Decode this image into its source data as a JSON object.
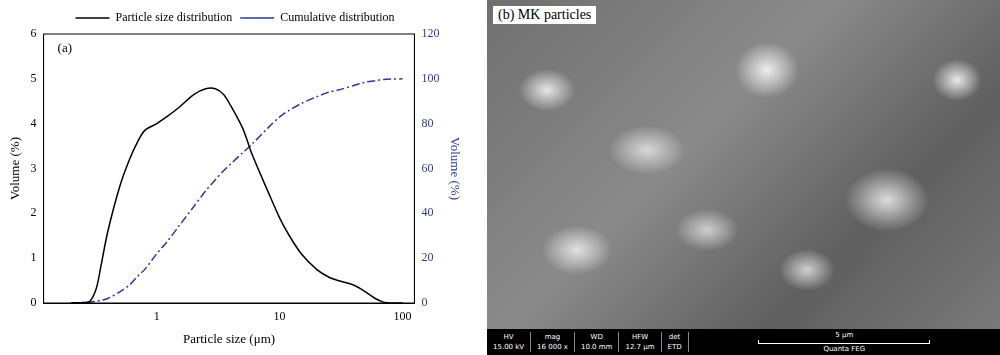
{
  "chart_data": {
    "type": "line",
    "x_label": "Particle size (μm)",
    "y_label": "Volume (%)",
    "y2_label": "Volume (%)",
    "annotations": [
      "(a)"
    ],
    "log": "x",
    "grid": false,
    "legend": "top",
    "xlim": [
      0.12,
      125
    ],
    "xticks": [
      1,
      10,
      100
    ],
    "ylim": [
      0,
      6
    ],
    "yticks": [
      0,
      1,
      2,
      3,
      4,
      5,
      6
    ],
    "y2lim": [
      0,
      120
    ],
    "y2ticks": [
      0,
      20,
      40,
      60,
      80,
      100,
      120
    ],
    "x": [
      0.2,
      0.28,
      0.32,
      0.35,
      0.4,
      0.5,
      0.6,
      0.7,
      0.8,
      1.0,
      1.2,
      1.5,
      2.0,
      2.5,
      3.0,
      3.5,
      4.0,
      5.0,
      6.0,
      8.0,
      10,
      12,
      15,
      20,
      25,
      30,
      40,
      50,
      60,
      70,
      80,
      100
    ],
    "series": [
      {
        "name": "Particle size distribution",
        "color": "#000000",
        "line_style": "solid",
        "values": [
          0,
          0.02,
          0.3,
          0.8,
          1.6,
          2.6,
          3.2,
          3.6,
          3.85,
          4.0,
          4.15,
          4.35,
          4.65,
          4.78,
          4.78,
          4.65,
          4.4,
          3.9,
          3.3,
          2.5,
          1.9,
          1.5,
          1.1,
          0.75,
          0.58,
          0.5,
          0.4,
          0.25,
          0.1,
          0.02,
          0,
          0
        ]
      },
      {
        "name": "Cumulative distribution",
        "color": "#2a3a9c",
        "line_style": "dashdot",
        "axis": "y2",
        "values": [
          0,
          0.3,
          0.8,
          1.2,
          2,
          5,
          8,
          12,
          15,
          22,
          27,
          34,
          43,
          50,
          55,
          59,
          62,
          67,
          71,
          78,
          83,
          86,
          89,
          92,
          94,
          95,
          97,
          98.5,
          99.2,
          99.7,
          99.9,
          100
        ]
      }
    ]
  },
  "image_panel": {
    "label": "(b) MK particles",
    "info_bar": [
      {
        "name": "HV",
        "value": "15.00 kV"
      },
      {
        "name": "mag",
        "value": "16 000 x"
      },
      {
        "name": "WD",
        "value": "10.0 mm"
      },
      {
        "name": "HFW",
        "value": "12.7 μm"
      },
      {
        "name": "det",
        "value": "ETD"
      }
    ],
    "scale_bar": "5 μm",
    "instrument": "Quanta FEG"
  }
}
